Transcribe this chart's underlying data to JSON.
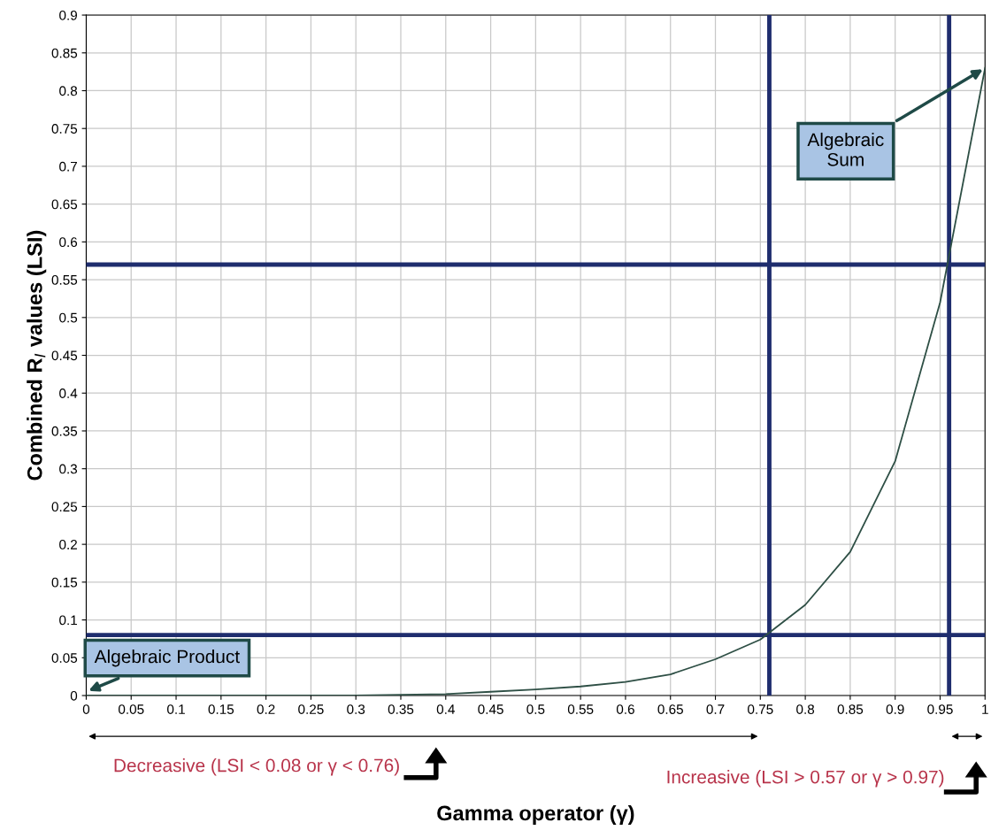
{
  "chart_data": {
    "type": "line",
    "xlabel": "Gamma operator (γ)",
    "ylabel": "Combined R$_{I}$ values (LSI)",
    "x": [
      0,
      0.05,
      0.1,
      0.15,
      0.2,
      0.25,
      0.3,
      0.35,
      0.4,
      0.45,
      0.5,
      0.55,
      0.6,
      0.65,
      0.7,
      0.75,
      0.8,
      0.85,
      0.9,
      0.95,
      1
    ],
    "series": [
      {
        "color": "#2e4f45",
        "values": [
          0,
          0,
          0,
          0,
          0,
          0,
          0,
          0.001,
          0.002,
          0.005,
          0.008,
          0.012,
          0.018,
          0.028,
          0.048,
          0.074,
          0.12,
          0.19,
          0.31,
          0.52,
          0.83
        ]
      }
    ],
    "xlim": [
      0,
      1
    ],
    "ylim": [
      0,
      0.9
    ],
    "xticks": [
      0,
      0.05,
      0.1,
      0.15,
      0.2,
      0.25,
      0.3,
      0.35,
      0.4,
      0.45,
      0.5,
      0.55,
      0.6,
      0.65,
      0.7,
      0.75,
      0.8,
      0.85,
      0.9,
      0.95,
      1
    ],
    "yticks": [
      0,
      0.05,
      0.1,
      0.15,
      0.2,
      0.25,
      0.3,
      0.35,
      0.4,
      0.45,
      0.5,
      0.55,
      0.6,
      0.65,
      0.7,
      0.75,
      0.8,
      0.85,
      0.9
    ],
    "grid": true,
    "legend": false,
    "marker": "none",
    "line_style": "solid",
    "ref_lines": [
      {
        "axis": "y",
        "value": 0.57,
        "color": "#1f2d6e"
      },
      {
        "axis": "y",
        "value": 0.08,
        "color": "#1f2d6e"
      },
      {
        "axis": "x",
        "value": 0.76,
        "color": "#1f2d6e"
      },
      {
        "axis": "x",
        "value": 0.96,
        "color": "#1f2d6e"
      }
    ],
    "annotations": [
      {
        "text": "Algebraic Product",
        "x": 0,
        "y": 0.005
      },
      {
        "text": "Algebraic\nSum",
        "x": 1,
        "y": 0.83
      },
      "Decreasive (LSI < 0.08 or γ < 0.76)",
      "Increasive (LSI > 0.57 or γ > 0.97)"
    ]
  }
}
